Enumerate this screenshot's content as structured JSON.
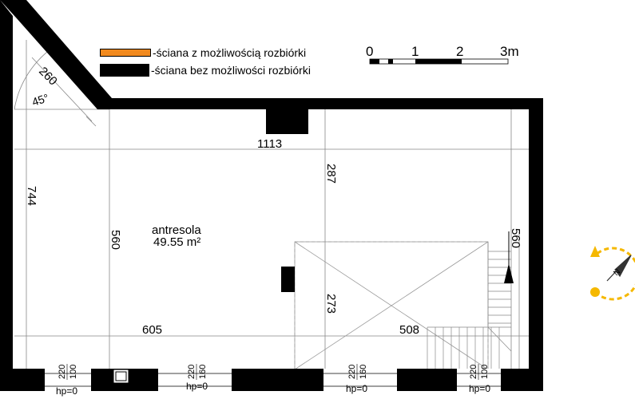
{
  "legend": {
    "items": [
      {
        "label": "-ściana z możliwością rozbiórki",
        "color": "#f28a1e"
      },
      {
        "label": "-ściana bez możliwości rozbiórki",
        "color": "#000000"
      }
    ]
  },
  "scale": {
    "labels": [
      "0",
      "1",
      "2",
      "3m"
    ]
  },
  "room": {
    "name": "antresola",
    "area": "49.55 m²"
  },
  "dimensions": {
    "corner_length": "260",
    "corner_angle": "45°",
    "total_width": "1113",
    "left_height": "744",
    "inner_height": "560",
    "right_height": "560",
    "upper_depth": "287",
    "void_depth": "273",
    "lower_left_width": "605",
    "lower_right_width": "508"
  },
  "windows": [
    {
      "top": "220",
      "bottom": "100",
      "hp": "hp=0"
    },
    {
      "top": "220",
      "bottom": "160",
      "hp": "hp=0"
    },
    {
      "top": "220",
      "bottom": "160",
      "hp": "hp=0"
    },
    {
      "top": "220",
      "bottom": "100",
      "hp": "hp=0"
    }
  ],
  "compass": {
    "label": "N",
    "accent": "#f5b800"
  }
}
